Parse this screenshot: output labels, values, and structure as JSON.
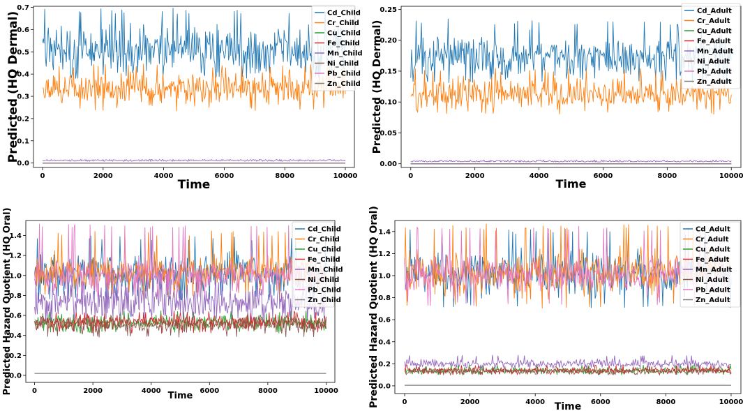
{
  "chart_data": [
    {
      "id": "p1",
      "type": "line",
      "title": "",
      "xlabel": "Time",
      "ylabel": "Predicted (HQ Dermal)",
      "xlim": [
        -300,
        10300
      ],
      "ylim": [
        -0.02,
        0.705
      ],
      "xticks": [
        0,
        2000,
        4000,
        6000,
        8000,
        10000
      ],
      "xtick_labels": [
        "0",
        "2000",
        "4000",
        "6000",
        "8000",
        "10000"
      ],
      "yticks": [
        0.0,
        0.1,
        0.2,
        0.3,
        0.4,
        0.5,
        0.6,
        0.7
      ],
      "ytick_labels": [
        "0.0",
        "0.1",
        "0.2",
        "0.3",
        "0.4",
        "0.5",
        "0.6",
        "0.7"
      ],
      "legend_position": "top-right",
      "series": [
        {
          "name": "Cd_Child",
          "color": "#1f77b4",
          "center": 0.505,
          "spread": 0.05,
          "range": [
            0.38,
            0.7
          ]
        },
        {
          "name": "Cr_Child",
          "color": "#ff7f0e",
          "center": 0.335,
          "spread": 0.035,
          "range": [
            0.23,
            0.45
          ]
        },
        {
          "name": "Cu_Child",
          "color": "#2ca02c",
          "center": 0.0,
          "spread": 0.0,
          "range": [
            0.0,
            0.0
          ]
        },
        {
          "name": "Fe_Child",
          "color": "#d62728",
          "center": 0.0,
          "spread": 0.0,
          "range": [
            0.0,
            0.0
          ]
        },
        {
          "name": "Mn_Child",
          "color": "#9467bd",
          "center": 0.012,
          "spread": 0.002,
          "range": [
            0.008,
            0.016
          ]
        },
        {
          "name": "Ni_Child",
          "color": "#8c564b",
          "center": 0.0,
          "spread": 0.0,
          "range": [
            0.0,
            0.0
          ]
        },
        {
          "name": "Pb_Child",
          "color": "#e377c2",
          "center": 0.0,
          "spread": 0.0,
          "range": [
            0.0,
            0.0
          ]
        },
        {
          "name": "Zn_Child",
          "color": "#7f7f7f",
          "center": 0.0,
          "spread": 0.0,
          "range": [
            0.0,
            0.0
          ]
        }
      ]
    },
    {
      "id": "p2",
      "type": "line",
      "title": "",
      "xlabel": "Time",
      "ylabel": "Predicted (HQ Dermal)",
      "xlim": [
        -300,
        10300
      ],
      "ylim": [
        -0.006,
        0.255
      ],
      "xticks": [
        0,
        2000,
        4000,
        6000,
        8000,
        10000
      ],
      "xtick_labels": [
        "0",
        "2000",
        "4000",
        "6000",
        "8000",
        "10000"
      ],
      "yticks": [
        0.0,
        0.05,
        0.1,
        0.15,
        0.2,
        0.25
      ],
      "ytick_labels": [
        "0.00",
        "0.05",
        "0.10",
        "0.15",
        "0.20",
        "0.25"
      ],
      "legend_position": "top-right",
      "series": [
        {
          "name": "Cd_Adult",
          "color": "#1f77b4",
          "center": 0.17,
          "spread": 0.017,
          "range": [
            0.13,
            0.235
          ]
        },
        {
          "name": "Cr_Adult",
          "color": "#ff7f0e",
          "center": 0.113,
          "spread": 0.012,
          "range": [
            0.08,
            0.155
          ]
        },
        {
          "name": "Cu_Adult",
          "color": "#2ca02c",
          "center": 0.0,
          "spread": 0.0,
          "range": [
            0.0,
            0.0
          ]
        },
        {
          "name": "Fe_Adult",
          "color": "#d62728",
          "center": 0.0,
          "spread": 0.0,
          "range": [
            0.0,
            0.0
          ]
        },
        {
          "name": "Mn_Adult",
          "color": "#9467bd",
          "center": 0.004,
          "spread": 0.0007,
          "range": [
            0.003,
            0.006
          ]
        },
        {
          "name": "Ni_Adult",
          "color": "#8c564b",
          "center": 0.0,
          "spread": 0.0,
          "range": [
            0.0,
            0.0
          ]
        },
        {
          "name": "Pb_Adult",
          "color": "#e377c2",
          "center": 0.0,
          "spread": 0.0,
          "range": [
            0.0,
            0.0
          ]
        },
        {
          "name": "Zn_Adult",
          "color": "#7f7f7f",
          "center": 0.0,
          "spread": 0.0,
          "range": [
            0.0,
            0.0
          ]
        }
      ]
    },
    {
      "id": "p3",
      "type": "line",
      "title": "",
      "xlabel": "Time",
      "ylabel": "Predicted Hazard Quotient (HQ Oral)",
      "xlim": [
        -300,
        10300
      ],
      "ylim": [
        -0.07,
        1.55
      ],
      "xticks": [
        0,
        2000,
        4000,
        6000,
        8000,
        10000
      ],
      "xtick_labels": [
        "0",
        "2000",
        "4000",
        "6000",
        "8000",
        "10000"
      ],
      "yticks": [
        0.0,
        0.2,
        0.4,
        0.6,
        0.8,
        1.0,
        1.2,
        1.4
      ],
      "ytick_labels": [
        "0.0",
        "0.2",
        "0.4",
        "0.6",
        "0.8",
        "1.0",
        "1.2",
        "1.4"
      ],
      "legend_position": "top-right",
      "series": [
        {
          "name": "Cd_Child",
          "color": "#1f77b4",
          "center": 1.02,
          "spread": 0.09,
          "range": [
            0.75,
            1.4
          ]
        },
        {
          "name": "Cr_Child",
          "color": "#ff7f0e",
          "center": 1.02,
          "spread": 0.09,
          "range": [
            0.75,
            1.45
          ]
        },
        {
          "name": "Cu_Child",
          "color": "#2ca02c",
          "center": 0.53,
          "spread": 0.035,
          "range": [
            0.42,
            0.65
          ]
        },
        {
          "name": "Fe_Child",
          "color": "#d62728",
          "center": 0.53,
          "spread": 0.035,
          "range": [
            0.42,
            0.65
          ]
        },
        {
          "name": "Mn_Child",
          "color": "#9467bd",
          "center": 0.73,
          "spread": 0.09,
          "range": [
            0.55,
            1.05
          ]
        },
        {
          "name": "Ni_Child",
          "color": "#8c564b",
          "center": 0.51,
          "spread": 0.035,
          "range": [
            0.38,
            0.6
          ]
        },
        {
          "name": "Pb_Child",
          "color": "#e377c2",
          "center": 1.0,
          "spread": 0.07,
          "range": [
            0.78,
            1.52
          ]
        },
        {
          "name": "Zn_Child",
          "color": "#7f7f7f",
          "center": 0.02,
          "spread": 0.0,
          "range": [
            0.02,
            0.02
          ]
        }
      ]
    },
    {
      "id": "p4",
      "type": "line",
      "title": "",
      "xlabel": "Time",
      "ylabel": "Predicted Hazard Quotient (HQ Oral)",
      "xlim": [
        -300,
        10300
      ],
      "ylim": [
        -0.07,
        1.5
      ],
      "xticks": [
        0,
        2000,
        4000,
        6000,
        8000,
        10000
      ],
      "xtick_labels": [
        "0",
        "2000",
        "4000",
        "6000",
        "8000",
        "10000"
      ],
      "yticks": [
        0.0,
        0.2,
        0.4,
        0.6,
        0.8,
        1.0,
        1.2,
        1.4
      ],
      "ytick_labels": [
        "0.0",
        "0.2",
        "0.4",
        "0.6",
        "0.8",
        "1.0",
        "1.2",
        "1.4"
      ],
      "legend_position": "top-right",
      "series": [
        {
          "name": "Cd_Adult",
          "color": "#1f77b4",
          "center": 1.02,
          "spread": 0.09,
          "range": [
            0.7,
            1.42
          ]
        },
        {
          "name": "Cr_Adult",
          "color": "#ff7f0e",
          "center": 1.02,
          "spread": 0.09,
          "range": [
            0.7,
            1.47
          ]
        },
        {
          "name": "Cu_Adult",
          "color": "#2ca02c",
          "center": 0.14,
          "spread": 0.012,
          "range": [
            0.1,
            0.19
          ]
        },
        {
          "name": "Fe_Adult",
          "color": "#d62728",
          "center": 0.14,
          "spread": 0.012,
          "range": [
            0.1,
            0.19
          ]
        },
        {
          "name": "Mn_Adult",
          "color": "#9467bd",
          "center": 0.2,
          "spread": 0.018,
          "range": [
            0.16,
            0.28
          ]
        },
        {
          "name": "Ni_Adult",
          "color": "#8c564b",
          "center": 0.13,
          "spread": 0.012,
          "range": [
            0.1,
            0.18
          ]
        },
        {
          "name": "Pb_Adult",
          "color": "#e377c2",
          "center": 1.0,
          "spread": 0.075,
          "range": [
            0.72,
            1.45
          ]
        },
        {
          "name": "Zn_Adult",
          "color": "#7f7f7f",
          "center": 0.005,
          "spread": 0.0,
          "range": [
            0.005,
            0.005
          ]
        }
      ]
    }
  ]
}
